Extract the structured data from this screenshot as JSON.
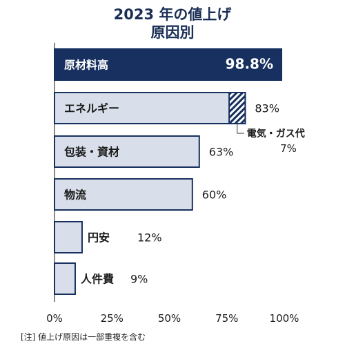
{
  "chart_data": {
    "type": "bar",
    "orientation": "horizontal",
    "title_line1": "2023 年の値上げ",
    "title_line2": "原因別",
    "categories": [
      "原材料高",
      "エネルギー",
      "包装・資材",
      "物流",
      "円安",
      "人件費"
    ],
    "values": [
      98.8,
      83,
      63,
      60,
      12,
      9
    ],
    "value_labels": [
      "98.8%",
      "83%",
      "63%",
      "60%",
      "12%",
      "9%"
    ],
    "highlight_category": "原材料高",
    "sub_segment": {
      "category": "エネルギー",
      "label": "電気・ガス代",
      "value": 7,
      "value_label": "7%"
    },
    "x_ticks": [
      "0%",
      "25%",
      "50%",
      "75%",
      "100%"
    ],
    "xlim": [
      0,
      100
    ],
    "grid": false,
    "colors": {
      "highlight_fill": "#17305f",
      "bar_fill": "#d9dfea",
      "bar_stroke": "#17305f",
      "axis": "#888888"
    }
  },
  "note": "[注] 値上げ原因は一部重複を含む"
}
